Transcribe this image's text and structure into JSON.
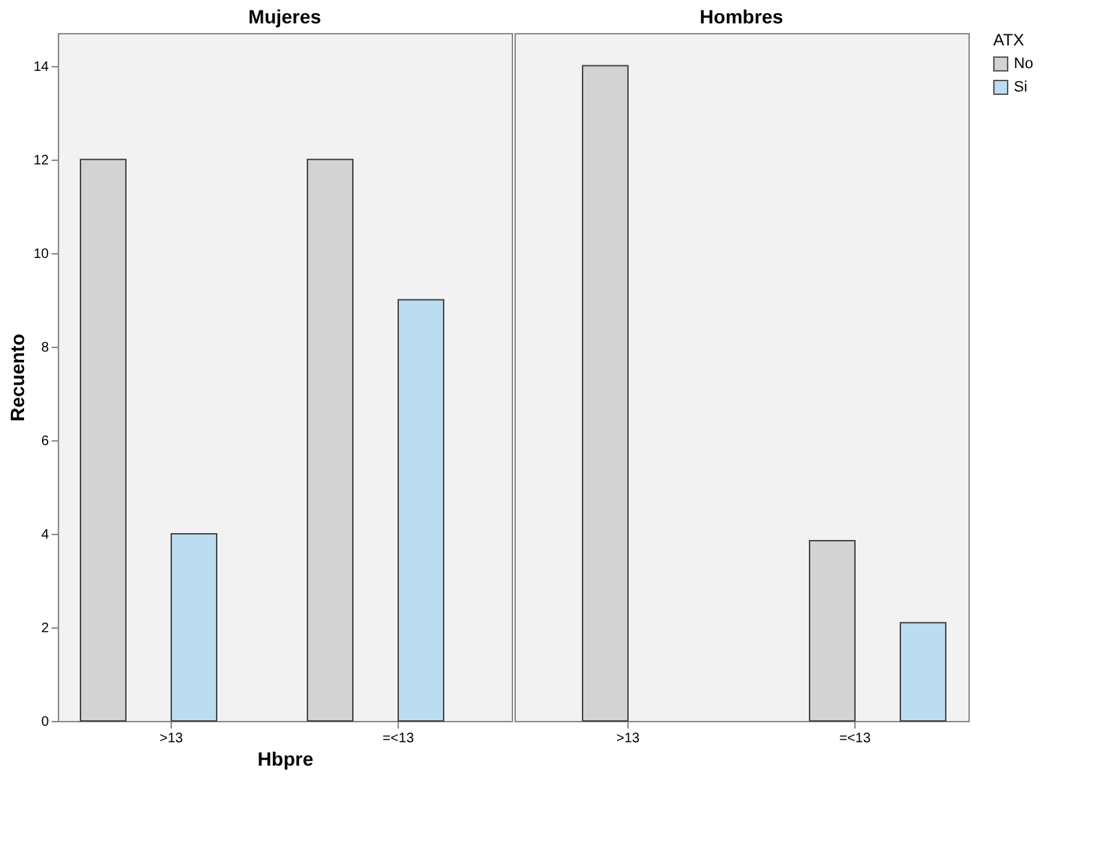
{
  "chart_data": [
    {
      "type": "bar",
      "title": "Mujeres",
      "xlabel": "Hbpre",
      "ylabel": "Recuento",
      "categories": [
        ">13",
        "=<13"
      ],
      "series": [
        {
          "color": "#d3d3d3",
          "values": [
            12,
            12
          ]
        },
        {
          "color": "#bcdcf2",
          "values": [
            4,
            9
          ]
        }
      ],
      "ylim": [
        0,
        14.7
      ],
      "yticks": [
        0,
        2,
        4,
        6,
        8,
        10,
        12,
        14
      ],
      "grid": false,
      "legend": false
    },
    {
      "type": "bar",
      "title": "Hombres",
      "legend_title": "ATX",
      "categories": [
        ">13",
        "=<13"
      ],
      "series": [
        {
          "name": "No",
          "color": "#d3d3d3",
          "values": [
            14,
            3.85
          ]
        },
        {
          "name": "Si",
          "color": "#bcdcf2",
          "values": [
            null,
            2.1
          ]
        }
      ],
      "ylim": [
        0,
        14.7
      ],
      "yticks": [
        0,
        2,
        4,
        6,
        8,
        10,
        12,
        14
      ],
      "grid": false,
      "legend": "top right",
      "tick_labels": "x"
    }
  ]
}
